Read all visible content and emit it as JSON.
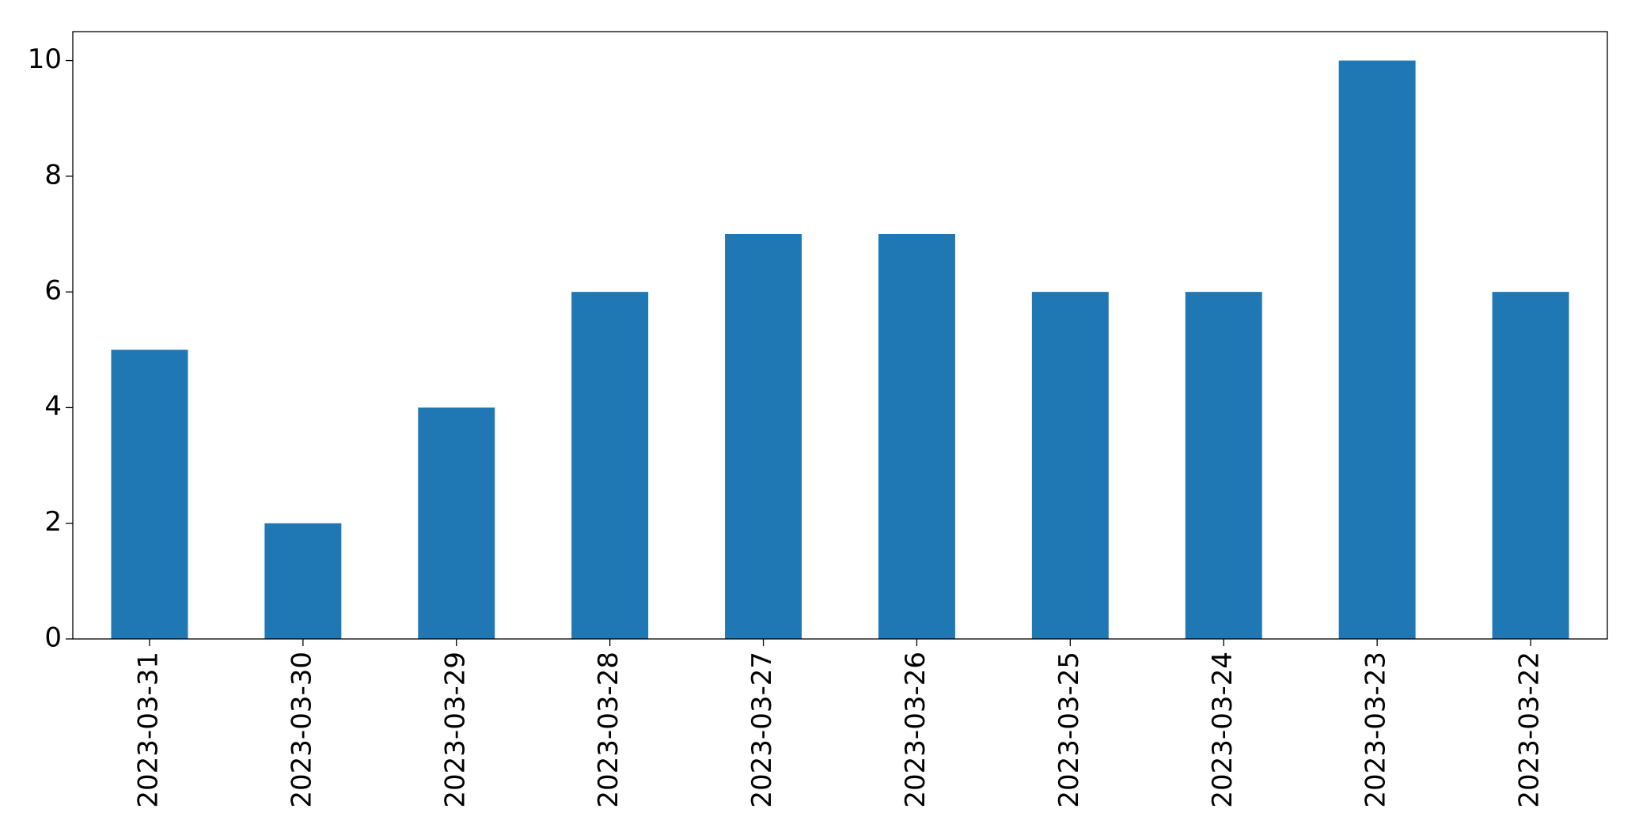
{
  "chart_data": {
    "type": "bar",
    "categories": [
      "2023-03-31",
      "2023-03-30",
      "2023-03-29",
      "2023-03-28",
      "2023-03-27",
      "2023-03-26",
      "2023-03-25",
      "2023-03-24",
      "2023-03-23",
      "2023-03-22"
    ],
    "values": [
      5,
      2,
      4,
      6,
      7,
      7,
      6,
      6,
      10,
      6
    ],
    "color": "#1f77b4",
    "ylim": [
      0,
      10.5
    ],
    "yticks": [
      0,
      2,
      4,
      6,
      8,
      10
    ],
    "grid": false
  }
}
